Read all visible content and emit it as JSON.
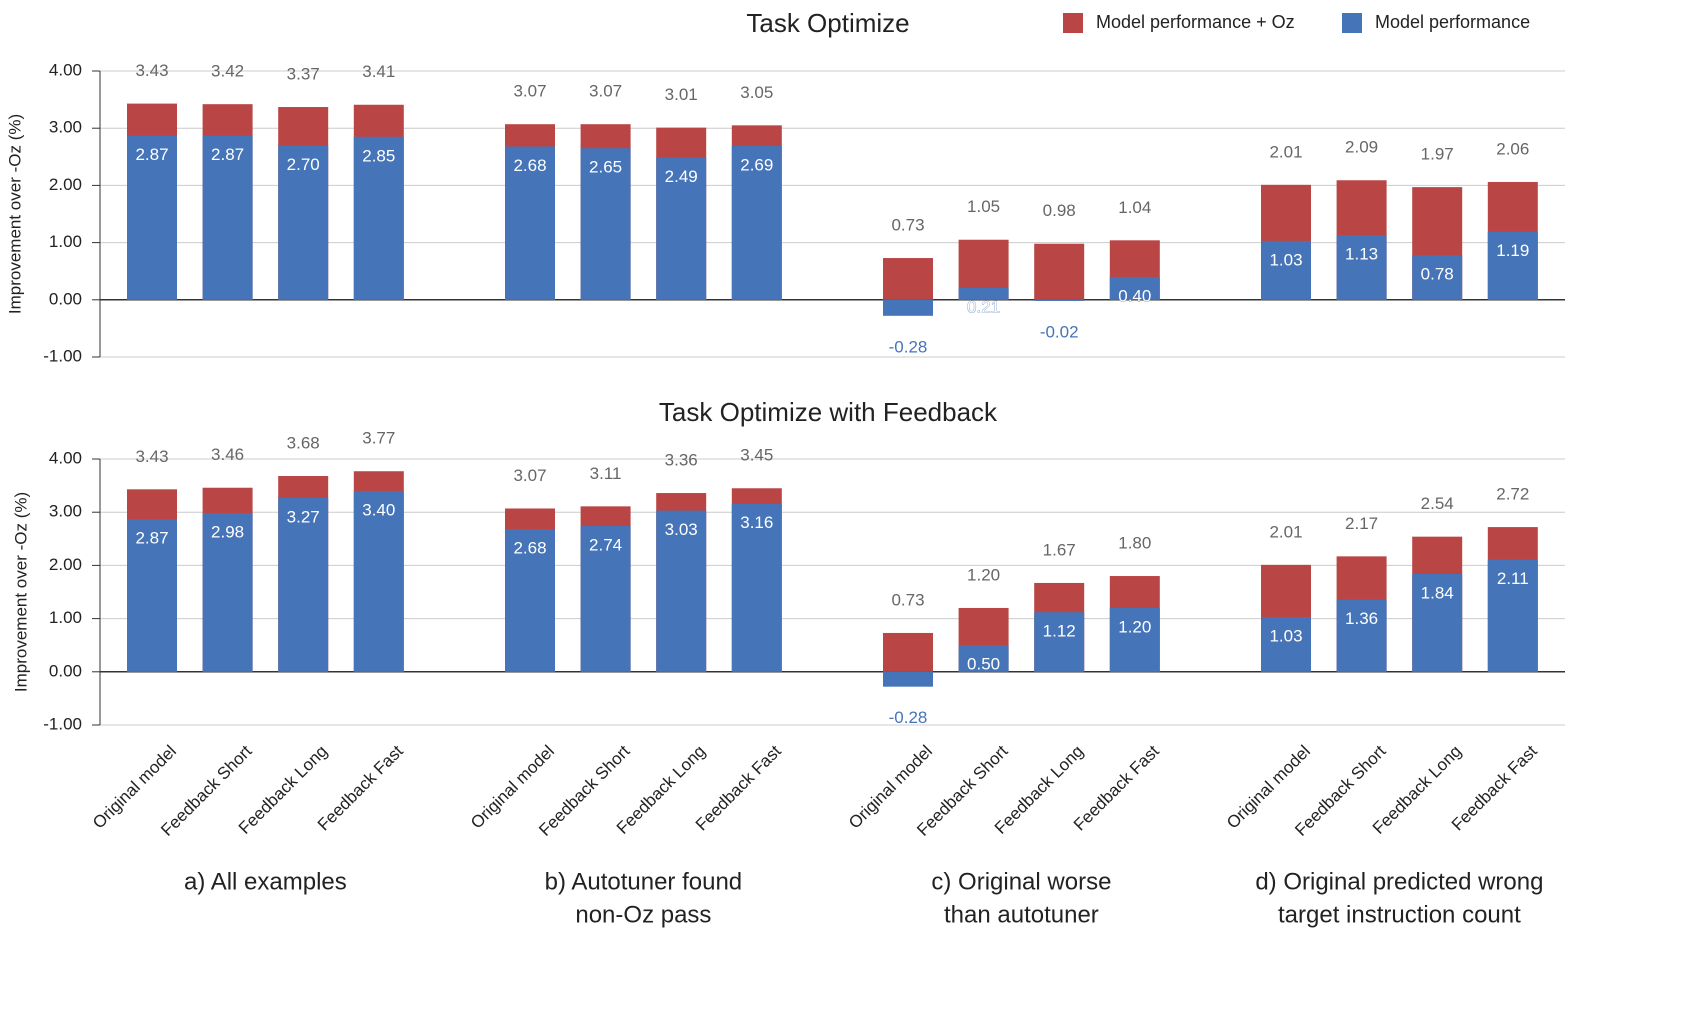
{
  "chart_data": [
    {
      "type": "bar",
      "title": "Task Optimize",
      "ylabel": "Improvement over -Oz (%)",
      "legend": "top-right",
      "grid": true,
      "ylim": [
        -1,
        4
      ],
      "yticks": [
        {
          "value": -1,
          "label": "-1.00"
        },
        {
          "value": 0,
          "label": "0.00"
        },
        {
          "value": 1,
          "label": "1.00"
        },
        {
          "value": 2,
          "label": "2.00"
        },
        {
          "value": 3,
          "label": "3.00"
        },
        {
          "value": 4,
          "label": "4.00"
        }
      ],
      "categories": [
        null,
        null,
        null,
        null,
        null,
        null,
        null,
        null,
        null,
        null,
        null,
        null,
        null,
        null,
        null,
        null
      ],
      "series": [
        {
          "name": "Model performance + Oz",
          "color": "#b94545",
          "values": [
            3.43,
            3.42,
            3.37,
            3.41,
            3.07,
            3.07,
            3.01,
            3.05,
            0.73,
            1.05,
            0.98,
            1.04,
            2.01,
            2.09,
            1.97,
            2.06
          ],
          "value_labels": [
            "3.43",
            "3.42",
            "3.37",
            "3.41",
            "3.07",
            "3.07",
            "3.01",
            "3.05",
            "0.73",
            "1.05",
            "0.98",
            "1.04",
            "2.01",
            "2.09",
            "1.97",
            "2.06"
          ]
        },
        {
          "name": "Model performance",
          "color": "#4674b8",
          "values": [
            2.87,
            2.87,
            2.7,
            2.85,
            2.68,
            2.65,
            2.49,
            2.69,
            -0.28,
            0.21,
            -0.02,
            0.4,
            1.03,
            1.13,
            0.78,
            1.19
          ],
          "value_labels": [
            "2.87",
            "2.87",
            "2.70",
            "2.85",
            "2.68",
            "2.65",
            "2.49",
            "2.69",
            "-0.28",
            "0.21",
            "-0.02",
            "0.40",
            "1.03",
            "1.13",
            "0.78",
            "1.19"
          ]
        }
      ]
    },
    {
      "type": "bar",
      "title": "Task Optimize with Feedback",
      "ylabel": "Improvement over -Oz (%)",
      "grid": true,
      "ylim": [
        -1,
        4
      ],
      "yticks": [
        {
          "value": -1,
          "label": "-1.00"
        },
        {
          "value": 0,
          "label": "0.00"
        },
        {
          "value": 1,
          "label": "1.00"
        },
        {
          "value": 2,
          "label": "2.00"
        },
        {
          "value": 3,
          "label": "3.00"
        },
        {
          "value": 4,
          "label": "4.00"
        }
      ],
      "categories": [
        "Original model",
        "Feedback Short",
        "Feedback Long",
        "Feedback Fast",
        "Original model",
        "Feedback Short",
        "Feedback Long",
        "Feedback Fast",
        "Original model",
        "Feedback Short",
        "Feedback Long",
        "Feedback Fast",
        "Original model",
        "Feedback Short",
        "Feedback Long",
        "Feedback Fast"
      ],
      "group_labels": [
        [
          "a) All examples"
        ],
        [
          "b) Autotuner found",
          "non-Oz pass"
        ],
        [
          "c) Original worse",
          "than autotuner"
        ],
        [
          "d) Original predicted wrong",
          "target instruction count"
        ]
      ],
      "series": [
        {
          "color": "#b94545",
          "values": [
            3.43,
            3.46,
            3.68,
            3.77,
            3.07,
            3.11,
            3.36,
            3.45,
            0.73,
            1.2,
            1.67,
            1.8,
            2.01,
            2.17,
            2.54,
            2.72
          ],
          "value_labels": [
            "3.43",
            "3.46",
            "3.68",
            "3.77",
            "3.07",
            "3.11",
            "3.36",
            "3.45",
            "0.73",
            "1.20",
            "1.67",
            "1.80",
            "2.01",
            "2.17",
            "2.54",
            "2.72"
          ]
        },
        {
          "color": "#4674b8",
          "values": [
            2.87,
            2.98,
            3.27,
            3.4,
            2.68,
            2.74,
            3.03,
            3.16,
            -0.28,
            0.5,
            1.12,
            1.2,
            1.03,
            1.36,
            1.84,
            2.11
          ],
          "value_labels": [
            "2.87",
            "2.98",
            "3.27",
            "3.40",
            "2.68",
            "2.74",
            "3.03",
            "3.16",
            "-0.28",
            "0.50",
            "1.12",
            "1.20",
            "1.03",
            "1.36",
            "1.84",
            "2.11"
          ]
        }
      ]
    }
  ]
}
